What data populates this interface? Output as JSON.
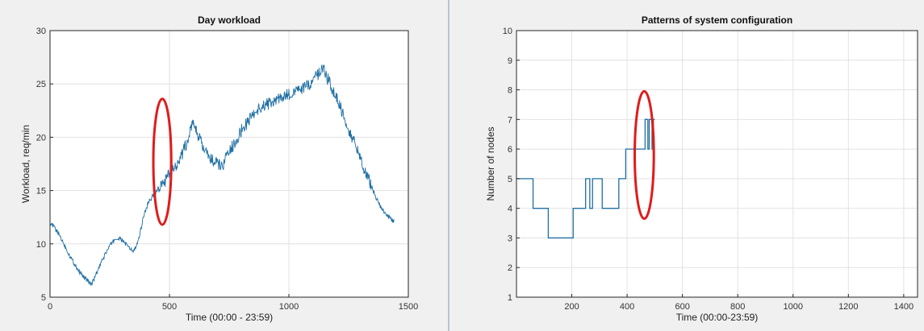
{
  "chart_data": [
    {
      "type": "line",
      "title": "Day workload",
      "xlabel": "Time (00:00 - 23:59)",
      "ylabel": "Workload, req/min",
      "xlim": [
        0,
        1500
      ],
      "ylim": [
        5,
        30
      ],
      "xticks": [
        0,
        500,
        1000,
        1500
      ],
      "yticks": [
        5,
        10,
        15,
        20,
        25,
        30
      ],
      "grid": true,
      "series_color": "#1f6fa3",
      "annotation_color": "#e01b1b",
      "series": [
        {
          "x": [
            0,
            20,
            40,
            60,
            80,
            100,
            120,
            140,
            160,
            175,
            190,
            210,
            230,
            250,
            270,
            290,
            310,
            330,
            350,
            370,
            390,
            410,
            430,
            450,
            470,
            490,
            510,
            530,
            550,
            570,
            590,
            600,
            620,
            640,
            660,
            680,
            700,
            720,
            740,
            760,
            780,
            800,
            820,
            840,
            860,
            880,
            900,
            920,
            940,
            960,
            980,
            1000,
            1020,
            1040,
            1060,
            1080,
            1100,
            1120,
            1140,
            1150,
            1160,
            1180,
            1200,
            1220,
            1240,
            1260,
            1280,
            1300,
            1320,
            1340,
            1360,
            1380,
            1400,
            1420,
            1440
          ],
          "y": [
            12.0,
            11.5,
            10.8,
            9.9,
            9.0,
            8.2,
            7.5,
            6.9,
            6.5,
            6.2,
            7.0,
            8.0,
            9.0,
            9.8,
            10.4,
            10.5,
            10.2,
            9.6,
            9.3,
            10.2,
            12.5,
            13.8,
            14.5,
            15.0,
            15.5,
            16.2,
            16.8,
            17.5,
            18.3,
            19.3,
            20.8,
            21.4,
            20.2,
            19.0,
            18.3,
            17.8,
            17.5,
            17.2,
            18.2,
            19.0,
            19.8,
            20.6,
            21.2,
            21.9,
            22.4,
            22.8,
            23.0,
            23.2,
            23.4,
            23.6,
            23.8,
            24.0,
            24.2,
            24.4,
            24.6,
            24.8,
            25.2,
            25.8,
            26.5,
            26.3,
            25.6,
            24.6,
            23.6,
            22.6,
            21.4,
            20.2,
            19.1,
            18.0,
            16.8,
            15.7,
            14.6,
            13.6,
            12.9,
            12.5,
            12.1
          ]
        }
      ],
      "ellipse": {
        "cx": 470,
        "cy": 17.7,
        "rx": 125,
        "ry": 5.9
      }
    },
    {
      "type": "line",
      "title": "Patterns of system configuration",
      "xlabel": "Time (00:00-23:59)",
      "ylabel": "Number of nodes",
      "xlim": [
        0,
        1450
      ],
      "ylim": [
        1,
        10
      ],
      "xticks": [
        200,
        400,
        600,
        800,
        1000,
        1200,
        1400
      ],
      "yticks": [
        1,
        2,
        3,
        4,
        5,
        6,
        7,
        8,
        9,
        10
      ],
      "grid": true,
      "series_color": "#1f6fa3",
      "annotation_color": "#e01b1b",
      "series": [
        {
          "step": true,
          "x": [
            0,
            60,
            115,
            205,
            250,
            265,
            275,
            285,
            310,
            370,
            395,
            465,
            475,
            480,
            490,
            495,
            500
          ],
          "y": [
            5,
            4,
            3,
            4,
            5,
            4,
            5,
            5,
            4,
            5,
            6,
            7,
            6,
            7,
            6,
            7,
            7
          ]
        }
      ],
      "ellipse": {
        "cx": 462,
        "cy": 5.8,
        "rx": 115,
        "ry": 2.15
      }
    }
  ]
}
